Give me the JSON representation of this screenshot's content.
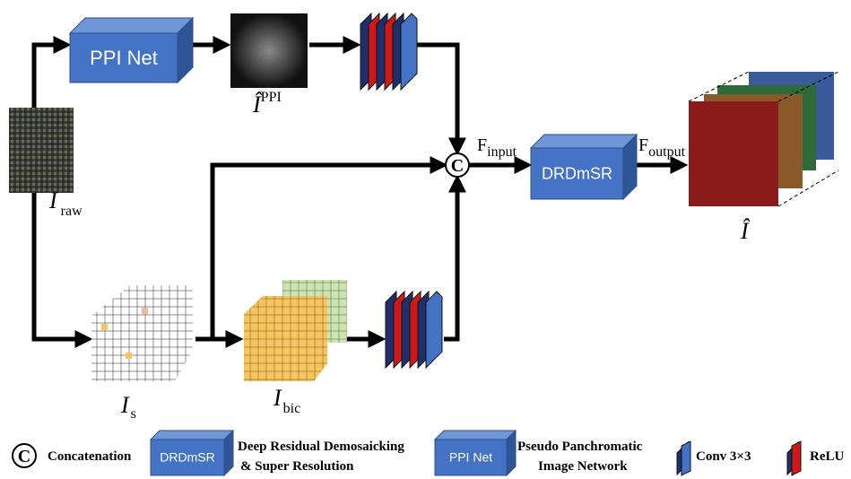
{
  "nodes": {
    "ppi_net": "PPI Net",
    "drdmsr": "DRDmSR",
    "concat": "C"
  },
  "labels": {
    "i_ppi": {
      "base": "Î",
      "sup": "PPI"
    },
    "i_raw": {
      "base": "I",
      "sub": "raw"
    },
    "i_s": {
      "base": "I",
      "sub": "s"
    },
    "i_bic": {
      "base": "I",
      "sub": "bic"
    },
    "f_input": {
      "base": "F",
      "sub": "input"
    },
    "f_output": {
      "base": "F",
      "sub": "output"
    },
    "i_hat": "Î"
  },
  "legend": {
    "concat": {
      "symbol": "C",
      "text": "Concatenation"
    },
    "drdmsr": {
      "box": "DRDmSR",
      "lines": [
        "Deep Residual Demosaicking",
        "& Super Resolution"
      ]
    },
    "ppi_net": {
      "box": "PPI Net",
      "lines": [
        "Pseudo Panchromatic",
        "Image Network"
      ]
    },
    "conv": "Conv 3×3",
    "relu": "ReLU"
  }
}
